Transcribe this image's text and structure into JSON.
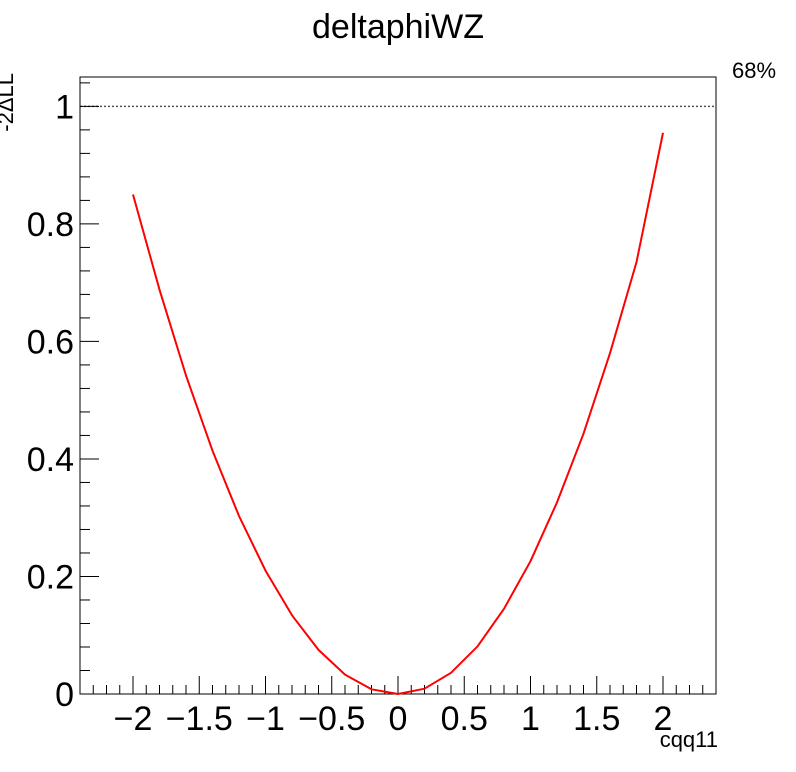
{
  "chart_data": {
    "type": "line",
    "title": "deltaphiWZ",
    "xlabel": "cqq11",
    "ylabel": "-2ΔLL",
    "xlim": [
      -2.4,
      2.4
    ],
    "ylim": [
      0,
      1.05
    ],
    "x_ticks": [
      -2,
      -1.5,
      -1,
      -0.5,
      0,
      0.5,
      1,
      1.5,
      2
    ],
    "x_tick_labels": [
      "−2",
      "−1.5",
      "−1",
      "−0.5",
      "0",
      "0.5",
      "1",
      "1.5",
      "2"
    ],
    "y_ticks": [
      0,
      0.2,
      0.4,
      0.6,
      0.8,
      1
    ],
    "y_tick_labels": [
      "0",
      "0.2",
      "0.4",
      "0.6",
      "0.8",
      "1"
    ],
    "grid": false,
    "series": [
      {
        "color": "#ff0000",
        "x": [
          -2.0,
          -1.8,
          -1.6,
          -1.4,
          -1.2,
          -1.0,
          -0.8,
          -0.6,
          -0.4,
          -0.2,
          0.0,
          0.2,
          0.4,
          0.6,
          0.8,
          1.0,
          1.2,
          1.4,
          1.6,
          1.8,
          2.0
        ],
        "y": [
          0.85,
          0.688,
          0.542,
          0.414,
          0.303,
          0.21,
          0.134,
          0.075,
          0.033,
          0.008,
          0.0,
          0.009,
          0.036,
          0.081,
          0.145,
          0.226,
          0.326,
          0.443,
          0.58,
          0.735,
          0.955
        ]
      }
    ],
    "reference_line": {
      "y": 1,
      "label": "68%",
      "style": "dotted",
      "color": "#555555"
    }
  }
}
